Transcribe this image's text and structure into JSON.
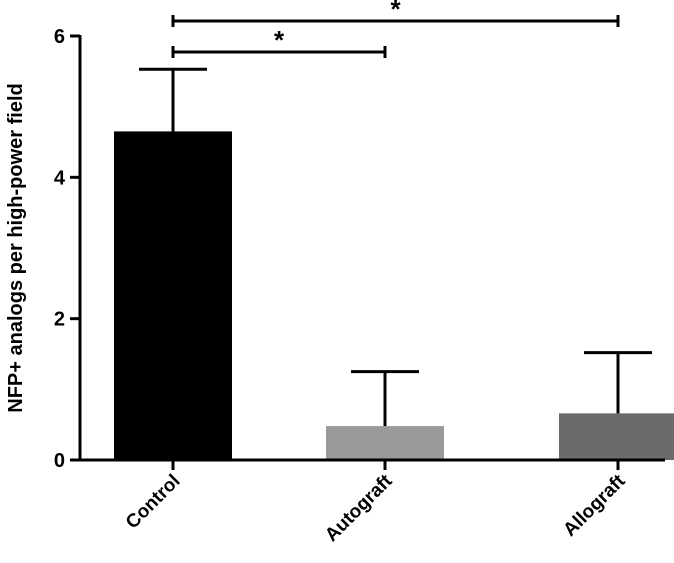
{
  "chart_data": {
    "type": "bar",
    "title": "",
    "xlabel": "",
    "ylabel": "NFP+ analogs per high-power field",
    "ylim": [
      0,
      6
    ],
    "yticks": [
      0,
      2,
      4,
      6
    ],
    "grid": false,
    "categories": [
      "Control",
      "Autograft",
      "Allograft"
    ],
    "values": [
      4.65,
      0.48,
      0.66
    ],
    "errors": [
      0.88,
      0.77,
      0.86
    ],
    "colors": [
      "#000000",
      "#9a9a9a",
      "#6b6b6b"
    ],
    "significance": [
      {
        "from": "Control",
        "to": "Autograft",
        "label": "*"
      },
      {
        "from": "Control",
        "to": "Allograft",
        "label": "*"
      }
    ]
  }
}
